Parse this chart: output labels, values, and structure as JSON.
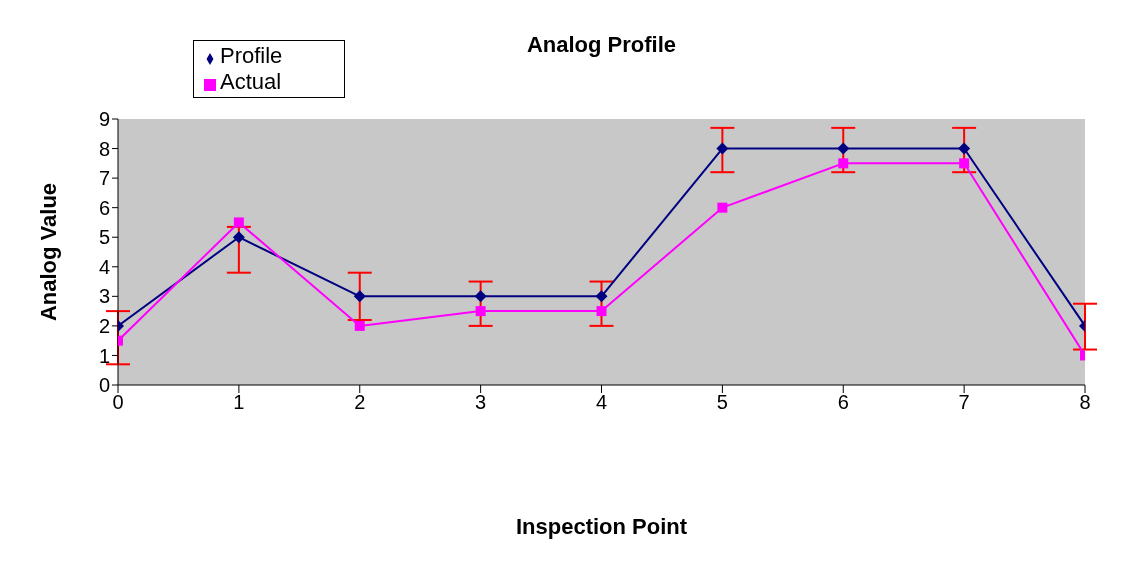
{
  "chart_data": {
    "type": "line",
    "title": "Analog Profile",
    "xlabel": "Inspection Point",
    "ylabel": "Analog Value",
    "x": [
      0,
      1,
      2,
      3,
      4,
      5,
      6,
      7,
      8
    ],
    "series": [
      {
        "name": "Profile",
        "color": "#000080",
        "marker": "diamond",
        "values": [
          2,
          5,
          3,
          3,
          3,
          8,
          8,
          8,
          2
        ],
        "errors": [
          [
            0.7,
            2.5
          ],
          [
            3.8,
            5.35
          ],
          [
            2.2,
            3.8
          ],
          [
            2.0,
            3.5
          ],
          [
            2.0,
            3.5
          ],
          [
            7.2,
            8.7
          ],
          [
            7.2,
            8.7
          ],
          [
            7.2,
            8.7
          ],
          [
            1.2,
            2.75
          ]
        ]
      },
      {
        "name": "Actual",
        "color": "#ff00ff",
        "marker": "square",
        "values": [
          1.5,
          5.5,
          2,
          2.5,
          2.5,
          6,
          7.5,
          7.5,
          1
        ]
      }
    ],
    "xlim": [
      0,
      8
    ],
    "xticks": [
      0,
      1,
      2,
      3,
      4,
      5,
      6,
      7,
      8
    ],
    "ylim": [
      0,
      9
    ],
    "yticks": [
      0,
      1,
      2,
      3,
      4,
      5,
      6,
      7,
      8,
      9
    ],
    "grid": false,
    "legend": "top left",
    "line_style": "solid"
  }
}
